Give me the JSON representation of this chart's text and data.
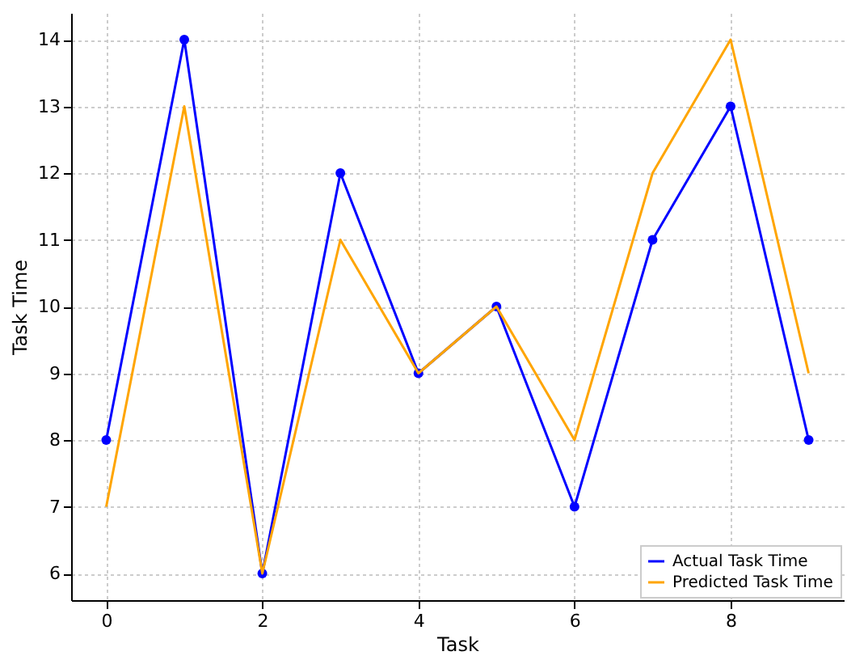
{
  "chart_data": {
    "type": "line",
    "xlabel": "Task",
    "ylabel": "Task Time",
    "x": [
      0,
      1,
      2,
      3,
      4,
      5,
      6,
      7,
      8,
      9
    ],
    "series": [
      {
        "name": "Actual Task Time",
        "color": "#0000ff",
        "marker": "circle",
        "values": [
          8,
          14,
          6,
          12,
          9,
          10,
          7,
          11,
          13,
          8
        ]
      },
      {
        "name": "Predicted Task Time",
        "color": "#ffa500",
        "marker": "none",
        "values": [
          7,
          13,
          6,
          11,
          9,
          10,
          8,
          12,
          14,
          9
        ]
      }
    ],
    "xlim": [
      -0.45,
      9.45
    ],
    "xticks": [
      0,
      2,
      4,
      6,
      8
    ],
    "ylim": [
      5.6,
      14.4
    ],
    "yticks": [
      6,
      7,
      8,
      9,
      10,
      11,
      12,
      13,
      14
    ],
    "grid": true,
    "legend": "bottom right"
  }
}
